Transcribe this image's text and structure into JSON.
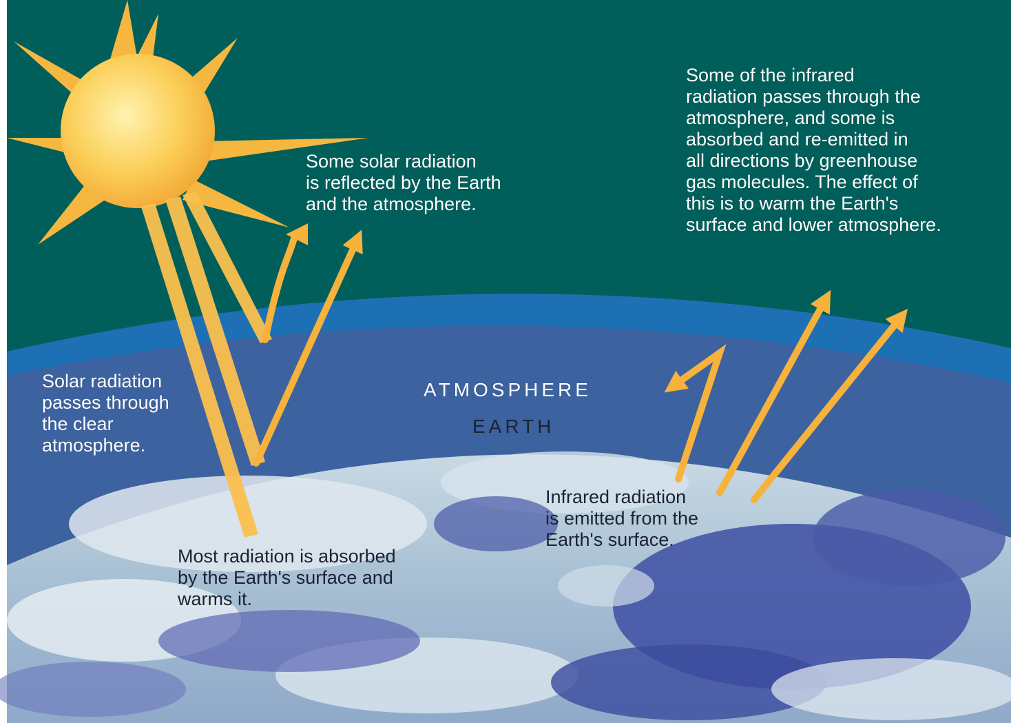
{
  "colors": {
    "space": "#005f5a",
    "atmosphere_rim": "#1e70b4",
    "atmosphere": "#3d62a0",
    "earth_base": "#a8c0d2",
    "sun": "#f9c84a",
    "ray": "#fbc04e",
    "arrow": "#f7b23c"
  },
  "icons": [
    "sun-icon",
    "earth-globe-icon",
    "radiation-arrow-icon"
  ],
  "regions": {
    "atmosphere": "ATMOSPHERE",
    "earth": "EARTH"
  },
  "captions": {
    "solar_passes": "Solar radiation\npasses through\nthe clear\natmosphere.",
    "solar_reflected": "Some solar radiation\nis reflected by the Earth\nand the atmosphere.",
    "absorbed": "Most radiation is absorbed\nby the Earth's surface and\nwarms it.",
    "infrared_emitted": "Infrared radiation\nis emitted from the\nEarth's surface.",
    "infrared_greenhouse": "Some of the infrared\nradiation passes through the\natmosphere, and some is\nabsorbed and re-emitted in\nall directions by greenhouse\ngas molecules. The effect of\nthis is to warm the Earth's\nsurface and lower atmosphere."
  }
}
